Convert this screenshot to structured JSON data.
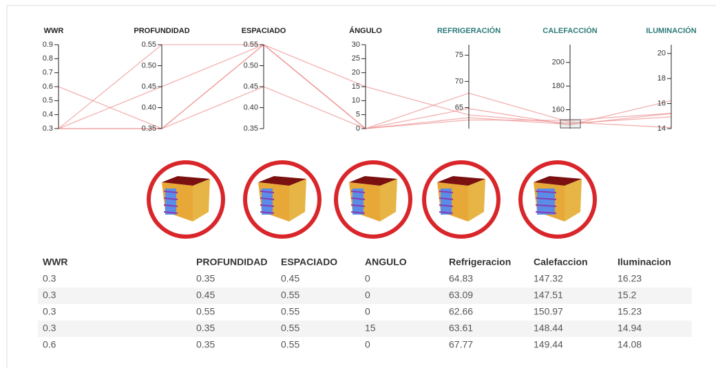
{
  "chart_data": {
    "type": "parallel",
    "line_color": "#ee8f8f",
    "axes": [
      {
        "name": "WWR",
        "color": "#222222",
        "ylim": [
          0.3,
          0.9
        ],
        "yticks": [
          0.3,
          0.4,
          0.5,
          0.6,
          0.7,
          0.8,
          0.9
        ]
      },
      {
        "name": "PROFUNDIDAD",
        "color": "#222222",
        "ylim": [
          0.35,
          0.55
        ],
        "yticks": [
          0.35,
          {
            "value": 0.4,
            "label": "0.40"
          },
          0.45,
          {
            "value": 0.5,
            "label": "0.50"
          },
          0.55
        ]
      },
      {
        "name": "ESPACIADO",
        "color": "#222222",
        "ylim": [
          0.35,
          0.55
        ],
        "yticks": [
          0.35,
          {
            "value": 0.4,
            "label": "0.40"
          },
          0.45,
          {
            "value": 0.5,
            "label": "0.50"
          },
          0.55
        ]
      },
      {
        "name": "ÁNGULO",
        "color": "#222222",
        "ylim": [
          0,
          30
        ],
        "yticks": [
          0,
          5,
          10,
          15,
          20,
          25,
          30
        ]
      },
      {
        "name": "REFRIGERACIÓN",
        "color": "#2a7a78",
        "ylim": [
          61,
          77
        ],
        "yticks": [
          65,
          70,
          75
        ]
      },
      {
        "name": "CALEFACCIÓN",
        "color": "#2a7a78",
        "ylim": [
          144,
          215
        ],
        "yticks": [
          160,
          180,
          200
        ]
      },
      {
        "name": "ILUMINACIÓN",
        "color": "#2a7a78",
        "ylim": [
          14,
          20.7
        ],
        "yticks": [
          14,
          16,
          18,
          20
        ]
      }
    ],
    "series": [
      {
        "values": [
          0.3,
          0.35,
          0.45,
          0,
          64.83,
          147.32,
          16.23
        ]
      },
      {
        "values": [
          0.3,
          0.45,
          0.55,
          0,
          63.09,
          147.51,
          15.2
        ]
      },
      {
        "values": [
          0.3,
          0.55,
          0.55,
          0,
          62.66,
          150.97,
          15.23
        ]
      },
      {
        "values": [
          0.3,
          0.35,
          0.55,
          15,
          63.61,
          148.44,
          14.94
        ]
      },
      {
        "values": [
          0.6,
          0.35,
          0.55,
          0,
          67.77,
          149.44,
          14.08
        ]
      }
    ]
  },
  "table": {
    "headers": [
      "WWR",
      "PROFUNDIDAD",
      "ESPACIADO",
      "ANGULO",
      "Refrigeracion",
      "Calefaccion",
      "Iluminacion"
    ]
  }
}
